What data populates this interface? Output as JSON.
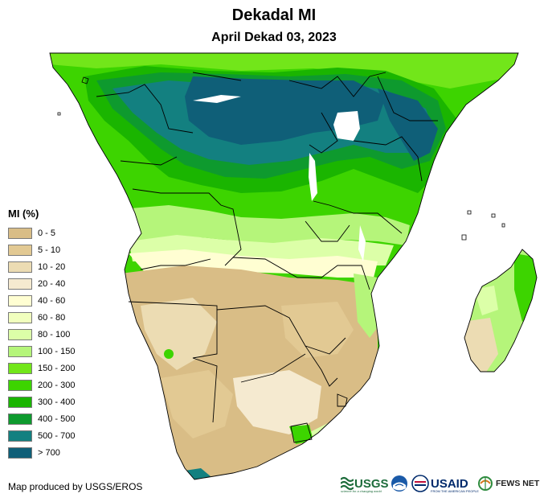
{
  "title": "Dekadal MI",
  "subtitle": "April Dekad 03, 2023",
  "legend": {
    "title": "MI (%)",
    "items": [
      {
        "label": "0 - 5",
        "color": "#d9bd86"
      },
      {
        "label": "5 - 10",
        "color": "#e2c993"
      },
      {
        "label": "10 - 20",
        "color": "#ecdcb3"
      },
      {
        "label": "20 - 40",
        "color": "#f5ead0"
      },
      {
        "label": "40 - 60",
        "color": "#fffed2"
      },
      {
        "label": "60 - 80",
        "color": "#f1ffbe"
      },
      {
        "label": "80 - 100",
        "color": "#dcffa8"
      },
      {
        "label": "100 - 150",
        "color": "#b5f57a"
      },
      {
        "label": "150 - 200",
        "color": "#72e61a"
      },
      {
        "label": "200 - 300",
        "color": "#3dd400"
      },
      {
        "label": "300 - 400",
        "color": "#1ab500"
      },
      {
        "label": "400 - 500",
        "color": "#0e9a2e"
      },
      {
        "label": "500 - 700",
        "color": "#138080"
      },
      {
        "label": "> 700",
        "color": "#0f5f78"
      }
    ]
  },
  "credit": "Map produced by USGS/EROS",
  "logos": {
    "usgs": "USGS",
    "usgs_tagline": "science for a changing world",
    "usaid": "USAID",
    "usaid_tagline": "FROM THE AMERICAN PEOPLE",
    "fews": "FEWS NET"
  },
  "colors": {
    "water": "#ffffff",
    "border": "#000000",
    "usgs_green": "#1d6c3b",
    "usaid_blue": "#002a6c",
    "usaid_red": "#c2113a"
  }
}
